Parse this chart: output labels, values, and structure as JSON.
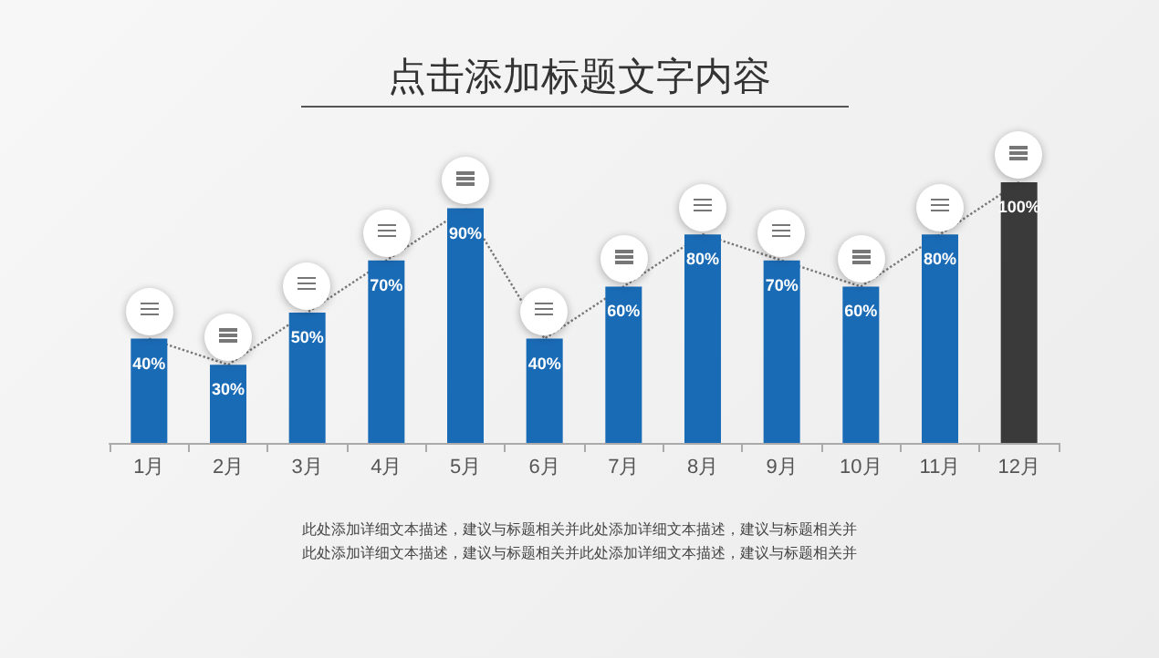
{
  "chart_data": {
    "type": "bar",
    "title": "点击添加标题文字内容",
    "categories": [
      "1月",
      "2月",
      "3月",
      "4月",
      "5月",
      "6月",
      "7月",
      "8月",
      "9月",
      "10月",
      "11月",
      "12月"
    ],
    "values": [
      40,
      30,
      50,
      70,
      90,
      40,
      60,
      80,
      70,
      60,
      80,
      100
    ],
    "colors": [
      "#1a6bb5",
      "#1a6bb5",
      "#1a6bb5",
      "#1a6bb5",
      "#1a6bb5",
      "#1a6bb5",
      "#1a6bb5",
      "#1a6bb5",
      "#1a6bb5",
      "#1a6bb5",
      "#1a6bb5",
      "#3a3a3a"
    ],
    "value_labels": [
      "40%",
      "30%",
      "50%",
      "70%",
      "90%",
      "40%",
      "60%",
      "80%",
      "70%",
      "60%",
      "80%",
      "100%"
    ],
    "annotations": [
      "此处添加详细文本描述，建议与标题相关并此处添加详细文本描述，建议与标题相关并",
      "此处添加详细文本描述，建议与标题相关并此处添加详细文本描述，建议与标题相关并"
    ],
    "grid": false
  }
}
